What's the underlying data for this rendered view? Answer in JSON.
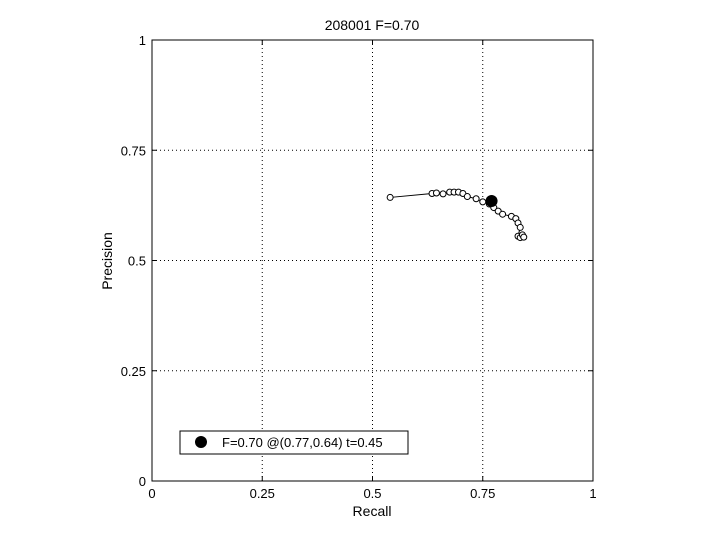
{
  "chart_data": {
    "type": "line",
    "title": "208001 F=0.70",
    "xlabel": "Recall",
    "ylabel": "Precision",
    "xlim": [
      0,
      1
    ],
    "ylim": [
      0,
      1
    ],
    "grid": true,
    "xticks": [
      0,
      0.25,
      0.5,
      0.75,
      1
    ],
    "xtick_labels": [
      "0",
      "0.25",
      "0.5",
      "0.75",
      "1"
    ],
    "yticks": [
      0,
      0.25,
      0.5,
      0.75,
      1
    ],
    "ytick_labels": [
      "0",
      "0.25",
      "0.5",
      "0.75",
      "1"
    ],
    "series": [
      {
        "x": [
          0.54,
          0.635,
          0.645,
          0.66,
          0.675,
          0.685,
          0.695,
          0.705,
          0.715,
          0.735,
          0.75,
          0.765,
          0.775,
          0.785,
          0.795,
          0.815,
          0.825,
          0.83,
          0.835,
          0.83,
          0.835,
          0.84,
          0.843
        ],
        "y": [
          0.643,
          0.652,
          0.653,
          0.651,
          0.655,
          0.655,
          0.655,
          0.652,
          0.645,
          0.64,
          0.633,
          0.628,
          0.62,
          0.612,
          0.605,
          0.6,
          0.595,
          0.585,
          0.575,
          0.555,
          0.552,
          0.558,
          0.553
        ],
        "marker": "open-circle",
        "color": "#000000"
      }
    ],
    "highlight_point": {
      "x": 0.77,
      "y": 0.635,
      "color": "#000000"
    },
    "legend": {
      "position": "bottom-left",
      "entries": [
        {
          "label": "F=0.70 @(0.77,0.64) t=0.45",
          "marker": "filled-circle"
        }
      ]
    }
  }
}
